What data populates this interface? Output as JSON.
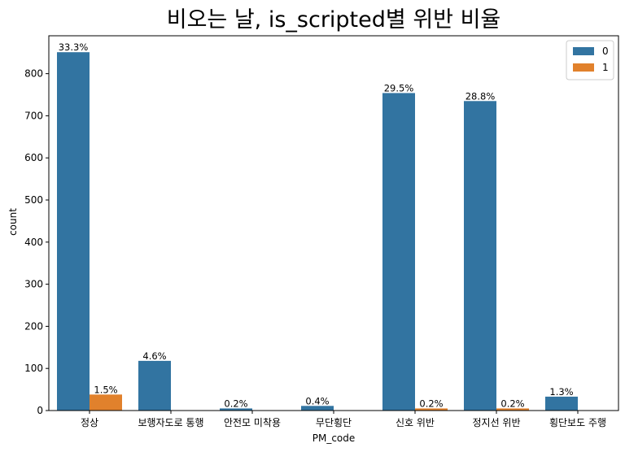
{
  "chart_data": {
    "type": "bar",
    "title": "비오는 날, is_scripted별 위반 비율",
    "xlabel": "PM_code",
    "ylabel": "count",
    "ylim": [
      0,
      890
    ],
    "yticks": [
      0,
      100,
      200,
      300,
      400,
      500,
      600,
      700,
      800
    ],
    "categories": [
      "정상",
      "보행자도로 통행",
      "안전모 미착용",
      "무단횡단",
      "신호 위반",
      "정지선 위반",
      "횡단보도 주행"
    ],
    "series": [
      {
        "name": "0",
        "color": "#3274a1",
        "values": [
          851,
          118,
          5,
          11,
          754,
          735,
          33
        ],
        "labels": [
          "33.3%",
          "4.6%",
          "0.2%",
          "0.4%",
          "29.5%",
          "28.8%",
          "1.3%"
        ]
      },
      {
        "name": "1",
        "color": "#e1812c",
        "values": [
          38,
          0,
          0,
          0,
          5,
          5,
          0
        ],
        "labels": [
          "1.5%",
          "",
          "",
          "",
          "0.2%",
          "0.2%",
          ""
        ]
      }
    ],
    "legend_position": "top-right",
    "grid": false
  }
}
